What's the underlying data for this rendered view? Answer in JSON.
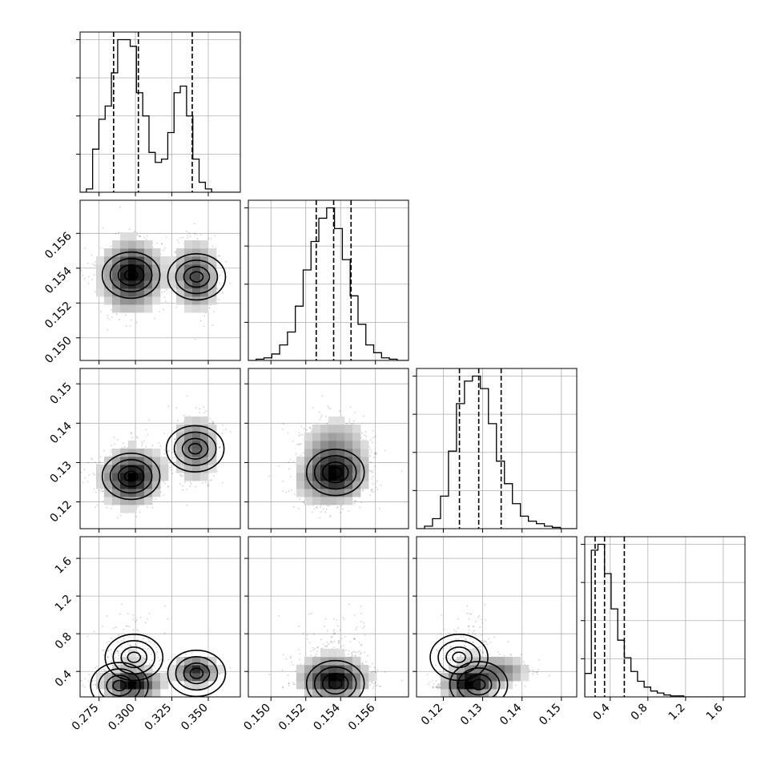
{
  "chart_data": {
    "type": "corner",
    "title": "",
    "grid": true,
    "parameters": [
      {
        "range": [
          0.262,
          0.372
        ],
        "ticks": [
          0.275,
          0.3,
          0.325,
          0.35
        ],
        "tick_labels": [
          "0.275",
          "0.300",
          "0.325",
          "0.350"
        ],
        "quantiles": [
          0.285,
          0.302,
          0.339
        ],
        "histogram": {
          "bin_edges": [
            0.262,
            0.2663,
            0.2706,
            0.2749,
            0.2792,
            0.2835,
            0.2878,
            0.2921,
            0.2964,
            0.3007,
            0.305,
            0.3093,
            0.3136,
            0.3179,
            0.3222,
            0.3265,
            0.3308,
            0.3351,
            0.3394,
            0.3437,
            0.348,
            0.3523,
            0.3566,
            0.3609,
            0.3652,
            0.372
          ],
          "counts": [
            0,
            2,
            26,
            44,
            52,
            72,
            92,
            92,
            88,
            60,
            46,
            24,
            18,
            20,
            36,
            60,
            64,
            46,
            20,
            6,
            2,
            0,
            0,
            0,
            0
          ]
        },
        "modes": [
          {
            "mean": 0.297,
            "sd": 0.0105,
            "weight": 0.65
          },
          {
            "mean": 0.342,
            "sd": 0.0075,
            "weight": 0.35
          }
        ]
      },
      {
        "range": [
          0.1487,
          0.1579
        ],
        "ticks": [
          0.15,
          0.152,
          0.154,
          0.156
        ],
        "tick_labels": [
          "0.150",
          "0.152",
          "0.154",
          "0.156"
        ],
        "quantiles": [
          0.1526,
          0.1536,
          0.1546
        ],
        "histogram": {
          "bin_edges": [
            0.1487,
            0.14915,
            0.1496,
            0.15005,
            0.1505,
            0.15095,
            0.1514,
            0.15185,
            0.1523,
            0.15275,
            0.1532,
            0.15365,
            0.1541,
            0.15455,
            0.155,
            0.15545,
            0.1559,
            0.15635,
            0.1568,
            0.15725,
            0.1579
          ],
          "counts": [
            0,
            1,
            2,
            5,
            12,
            22,
            42,
            70,
            92,
            110,
            118,
            102,
            78,
            50,
            28,
            12,
            6,
            2,
            1,
            0
          ]
        },
        "modes": [
          {
            "mean": 0.1536,
            "sd": 0.001,
            "weight": 1.0
          }
        ]
      },
      {
        "range": [
          0.1132,
          0.1539
        ],
        "ticks": [
          0.12,
          0.13,
          0.14,
          0.15
        ],
        "tick_labels": [
          "0.12",
          "0.13",
          "0.14",
          "0.15"
        ],
        "quantiles": [
          0.1241,
          0.129,
          0.1347
        ],
        "histogram": {
          "bin_edges": [
            0.1132,
            0.11523,
            0.11726,
            0.11929,
            0.12132,
            0.12335,
            0.12538,
            0.12741,
            0.12944,
            0.13147,
            0.1335,
            0.13553,
            0.13756,
            0.13959,
            0.14162,
            0.14365,
            0.14568,
            0.14771,
            0.14974,
            0.15177,
            0.1539
          ],
          "counts": [
            0,
            2,
            8,
            26,
            62,
            100,
            118,
            122,
            112,
            84,
            54,
            36,
            20,
            10,
            6,
            4,
            2,
            1,
            0,
            0
          ]
        },
        "modes": [
          {
            "mean": 0.126,
            "sd": 0.004,
            "weight": 0.68
          },
          {
            "mean": 0.134,
            "sd": 0.0035,
            "weight": 0.32
          }
        ]
      },
      {
        "range": [
          0.13,
          1.83
        ],
        "ticks": [
          0.4,
          0.8,
          1.2,
          1.6
        ],
        "tick_labels": [
          "0.4",
          "0.8",
          "1.2",
          "1.6"
        ],
        "quantiles": [
          0.24,
          0.34,
          0.55
        ],
        "histogram": {
          "bin_edges": [
            0.13,
            0.2,
            0.27,
            0.34,
            0.41,
            0.48,
            0.55,
            0.62,
            0.69,
            0.76,
            0.83,
            0.9,
            0.97,
            1.04,
            1.11,
            1.18,
            1.25,
            1.32,
            1.39,
            1.46,
            1.53,
            1.6,
            1.67,
            1.74,
            1.83
          ],
          "counts": [
            24,
            150,
            156,
            126,
            90,
            58,
            40,
            26,
            16,
            10,
            6,
            4,
            2,
            1,
            1,
            0,
            0,
            0,
            0,
            0,
            0,
            0,
            0,
            0
          ]
        },
        "modes": [
          {
            "mean": 0.26,
            "sd": 0.05,
            "weight": 0.6
          },
          {
            "mean": 0.42,
            "sd": 0.12,
            "weight": 0.4
          }
        ]
      }
    ],
    "pair_density": [
      {
        "row": 1,
        "col": 0,
        "centers": [
          [
            0.297,
            0.1536
          ],
          [
            0.342,
            0.1535
          ]
        ],
        "color_max": 0.6
      },
      {
        "row": 2,
        "col": 0,
        "centers": [
          [
            0.297,
            0.1265
          ],
          [
            0.341,
            0.1335
          ]
        ],
        "color_max": 0.6
      },
      {
        "row": 2,
        "col": 1,
        "centers": [
          [
            0.1537,
            0.1275
          ]
        ],
        "color_max": 0.5
      },
      {
        "row": 3,
        "col": 0,
        "centers": [
          [
            0.289,
            0.25
          ],
          [
            0.342,
            0.38
          ],
          [
            0.299,
            0.55
          ]
        ],
        "color_max": 0.7
      },
      {
        "row": 3,
        "col": 1,
        "centers": [
          [
            0.1537,
            0.27
          ]
        ],
        "color_max": 0.7
      },
      {
        "row": 3,
        "col": 2,
        "centers": [
          [
            0.129,
            0.26
          ],
          [
            0.124,
            0.55
          ]
        ],
        "color_max": 0.7
      }
    ],
    "contour_levels_sigma": [
      0.5,
      1.0,
      1.5,
      2.0
    ]
  }
}
